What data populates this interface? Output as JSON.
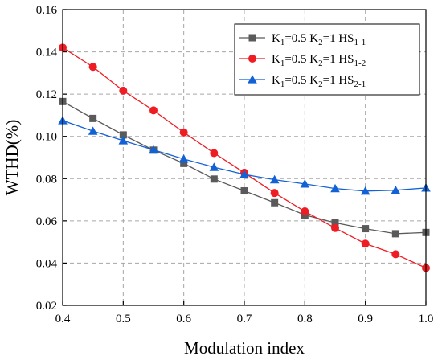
{
  "chart_data": {
    "type": "line",
    "xlabel": "Modulation index",
    "ylabel": "WTHD(%)",
    "xlim": [
      0.4,
      1.0
    ],
    "ylim": [
      0.02,
      0.16
    ],
    "x_ticks": [
      "0.4",
      "0.5",
      "0.6",
      "0.7",
      "0.8",
      "0.9",
      "1.0"
    ],
    "y_ticks": [
      "0.02",
      "0.04",
      "0.06",
      "0.08",
      "0.10",
      "0.12",
      "0.14",
      "0.16"
    ],
    "grid": true,
    "legend_position": "top-right",
    "x": [
      0.4,
      0.45,
      0.5,
      0.55,
      0.6,
      0.65,
      0.7,
      0.75,
      0.8,
      0.85,
      0.9,
      0.95,
      1.0
    ],
    "series": [
      {
        "name": "K1=0.5 K2=1 HS1-1",
        "legend": {
          "k1_sub": "1",
          "k1_val": "=0.5 K",
          "k2_sub": "2",
          "k2_val": "=1 HS",
          "hs_sub": "1-1"
        },
        "color": "#5a5a5a",
        "marker": "square",
        "values": [
          0.1165,
          0.1085,
          0.1007,
          0.0935,
          0.0872,
          0.0798,
          0.0742,
          0.0686,
          0.0628,
          0.0591,
          0.0563,
          0.0539,
          0.0545
        ]
      },
      {
        "name": "K1=0.5 K2=1 HS1-2",
        "legend": {
          "k1_sub": "1",
          "k1_val": "=0.5 K",
          "k2_sub": "2",
          "k2_val": "=1 HS",
          "hs_sub": "1-2"
        },
        "color": "#ee1d23",
        "marker": "circle",
        "values": [
          0.142,
          0.1329,
          0.1216,
          0.1123,
          0.1019,
          0.0921,
          0.0828,
          0.0732,
          0.0645,
          0.0566,
          0.0492,
          0.0442,
          0.0377
        ]
      },
      {
        "name": "K1=0.5 K2=1 HS2-1",
        "legend": {
          "k1_sub": "1",
          "k1_val": "=0.5 K",
          "k2_sub": "2",
          "k2_val": "=1 HS",
          "hs_sub": "2-1"
        },
        "color": "#1262d6",
        "marker": "triangle",
        "values": [
          0.1075,
          0.1025,
          0.098,
          0.0936,
          0.0893,
          0.0854,
          0.082,
          0.0795,
          0.0775,
          0.0753,
          0.0741,
          0.0745,
          0.0756
        ]
      }
    ]
  }
}
